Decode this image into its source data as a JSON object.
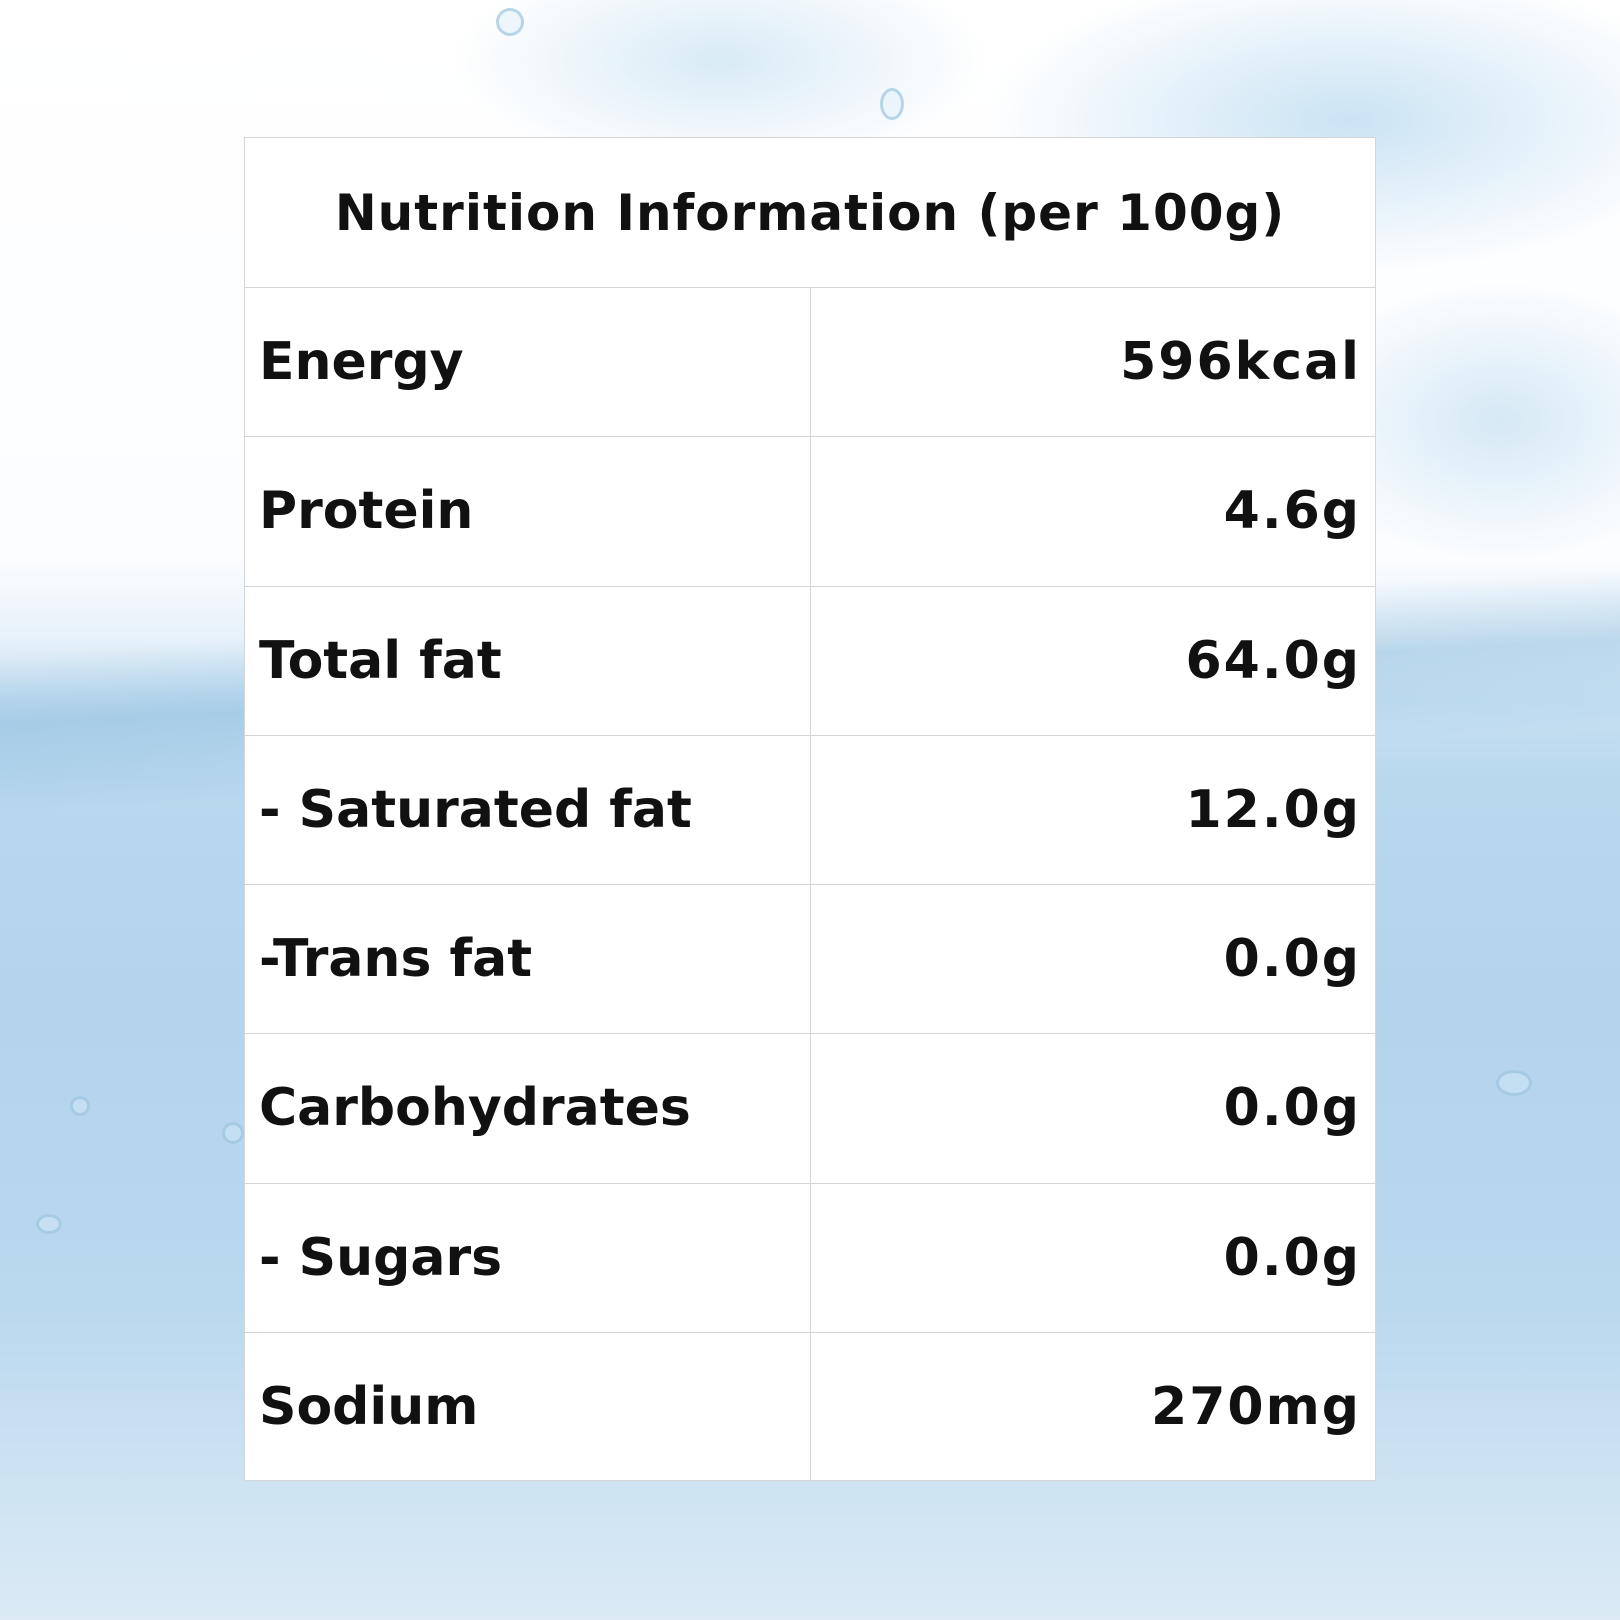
{
  "table": {
    "title": "Nutrition Information (per 100g)",
    "rows": [
      {
        "name": "Energy",
        "value": "596kcal"
      },
      {
        "name": "Protein",
        "value": "4.6g"
      },
      {
        "name": "Total fat",
        "value": "64.0g"
      },
      {
        "name": "- Saturated fat",
        "value": "12.0g"
      },
      {
        "name": "-Trans fat",
        "value": "0.0g"
      },
      {
        "name": "Carbohydrates",
        "value": "0.0g"
      },
      {
        "name": "- Sugars",
        "value": "0.0g"
      },
      {
        "name": "Sodium",
        "value": "270mg"
      }
    ]
  },
  "colors": {
    "text": "#111111",
    "border": "#d6d6d6",
    "water": "#b3d4ec"
  }
}
